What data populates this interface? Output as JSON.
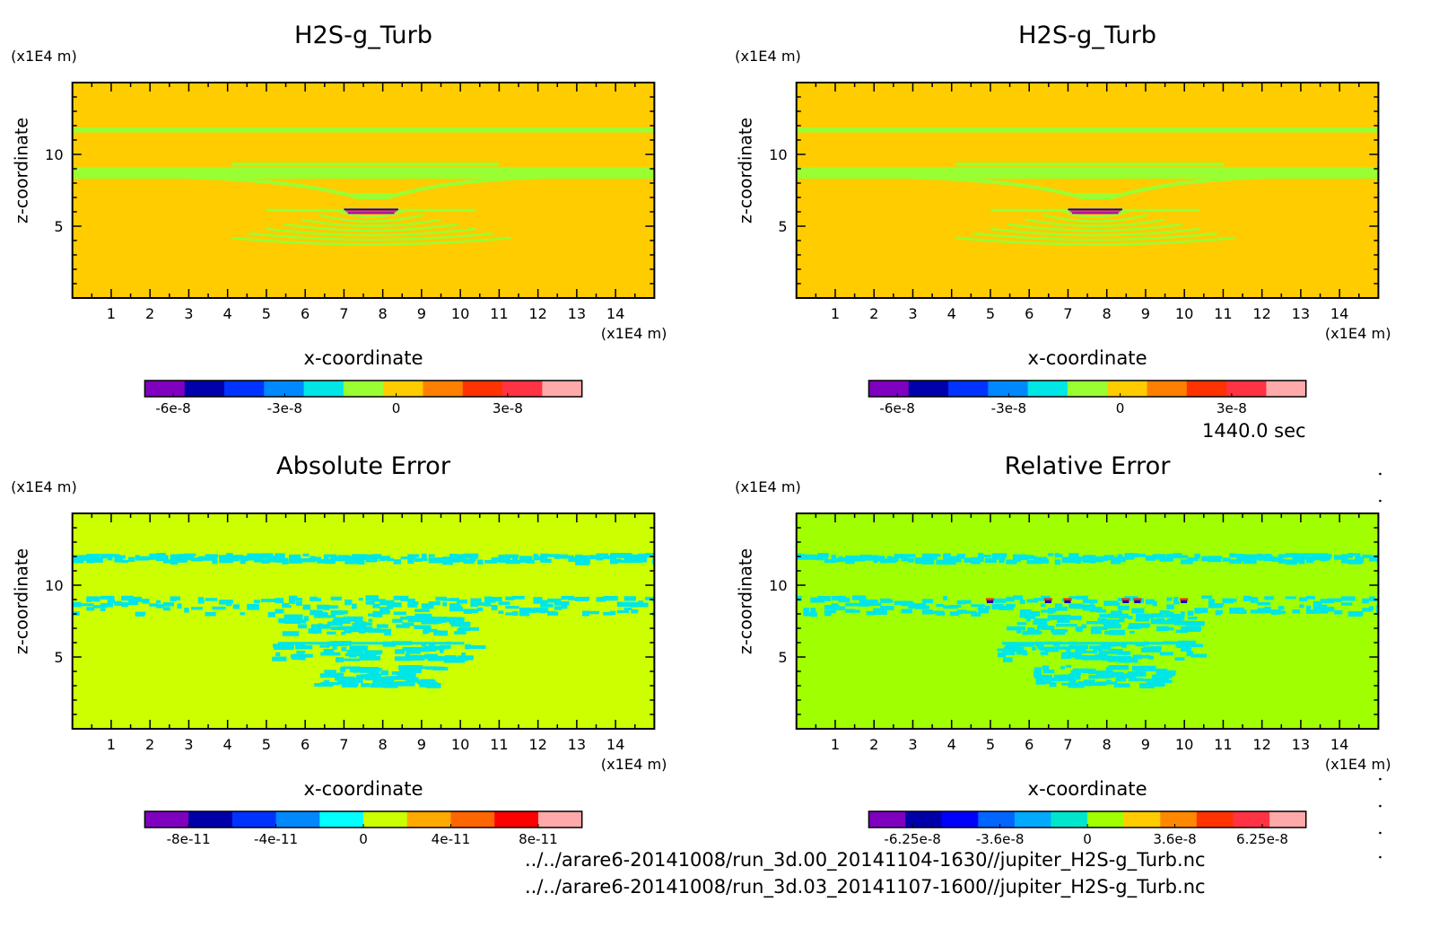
{
  "chart_data": [
    {
      "type": "heatmap",
      "title": "H2S-g_Turb",
      "xlabel": "x-coordinate",
      "ylabel": "z-coordinate",
      "x_unit": "(x1E4 m)",
      "y_unit": "(x1E4 m)",
      "x_ticks": [
        "1",
        "2",
        "3",
        "4",
        "5",
        "6",
        "7",
        "8",
        "9",
        "10",
        "11",
        "12",
        "13",
        "14"
      ],
      "y_ticks": [
        "5",
        "10"
      ],
      "xlim": [
        0,
        15
      ],
      "ylim": [
        0,
        15
      ],
      "background_color": "#ffcc00",
      "features": [
        {
          "kind": "band",
          "z": 11.7,
          "thickness": 0.35,
          "color": "#99ff33"
        },
        {
          "kind": "band",
          "z": 8.7,
          "thickness": 0.8,
          "color": "#99ff33"
        },
        {
          "kind": "thin-line",
          "z": 9.3,
          "x_from": 4.1,
          "x_to": 11.0,
          "color": "#99ff33"
        },
        {
          "kind": "wedge",
          "z": 7.0,
          "x_from": 5.0,
          "x_to": 10.5,
          "color": "#99ff33"
        },
        {
          "kind": "rings",
          "z_center": 4.0,
          "x_center": 7.7,
          "color": "#99ff33"
        },
        {
          "kind": "core",
          "z": 6.1,
          "x_center": 7.7,
          "colors": [
            "#0000cc",
            "#ff3333",
            "#9900cc"
          ]
        }
      ],
      "colorbar": {
        "colors": [
          "#7f00bf",
          "#0000aa",
          "#0033ff",
          "#0088ff",
          "#00e6e6",
          "#99ff33",
          "#ffcc00",
          "#ff8000",
          "#ff3300",
          "#ff3344",
          "#ffaaaa"
        ],
        "labels": [
          "-6e-8",
          "-3e-8",
          "0",
          "3e-8"
        ]
      }
    },
    {
      "type": "heatmap",
      "title": "H2S-g_Turb",
      "xlabel": "x-coordinate",
      "ylabel": "z-coordinate",
      "x_unit": "(x1E4 m)",
      "y_unit": "(x1E4 m)",
      "x_ticks": [
        "1",
        "2",
        "3",
        "4",
        "5",
        "6",
        "7",
        "8",
        "9",
        "10",
        "11",
        "12",
        "13",
        "14"
      ],
      "y_ticks": [
        "5",
        "10"
      ],
      "xlim": [
        0,
        15
      ],
      "ylim": [
        0,
        15
      ],
      "background_color": "#ffcc00",
      "features": [
        {
          "kind": "band",
          "z": 11.7,
          "thickness": 0.35,
          "color": "#99ff33"
        },
        {
          "kind": "band",
          "z": 8.7,
          "thickness": 0.8,
          "color": "#99ff33"
        },
        {
          "kind": "thin-line",
          "z": 9.3,
          "x_from": 4.1,
          "x_to": 11.0,
          "color": "#99ff33"
        },
        {
          "kind": "wedge",
          "z": 7.0,
          "x_from": 5.0,
          "x_to": 10.5,
          "color": "#99ff33"
        },
        {
          "kind": "rings",
          "z_center": 4.0,
          "x_center": 7.7,
          "color": "#99ff33"
        },
        {
          "kind": "core",
          "z": 6.1,
          "x_center": 7.7,
          "colors": [
            "#0000cc",
            "#ff3333",
            "#9900cc"
          ]
        }
      ],
      "colorbar": {
        "colors": [
          "#7f00bf",
          "#0000aa",
          "#0033ff",
          "#0088ff",
          "#00e6e6",
          "#99ff33",
          "#ffcc00",
          "#ff8000",
          "#ff3300",
          "#ff3344",
          "#ffaaaa"
        ],
        "labels": [
          "-6e-8",
          "-3e-8",
          "0",
          "3e-8"
        ]
      }
    },
    {
      "type": "heatmap",
      "title": "Absolute Error",
      "xlabel": "x-coordinate",
      "ylabel": "z-coordinate",
      "x_unit": "(x1E4 m)",
      "y_unit": "(x1E4 m)",
      "x_ticks": [
        "1",
        "2",
        "3",
        "4",
        "5",
        "6",
        "7",
        "8",
        "9",
        "10",
        "11",
        "12",
        "13",
        "14"
      ],
      "y_ticks": [
        "5",
        "10"
      ],
      "xlim": [
        0,
        15
      ],
      "ylim": [
        0,
        15
      ],
      "background_color": "#ccff00",
      "features": [
        {
          "kind": "noisy-band",
          "z": 12.0,
          "thickness": 0.5,
          "color": "#00e6e6"
        },
        {
          "kind": "noisy-band",
          "z": 8.7,
          "thickness": 1.2,
          "color": "#00e6e6"
        },
        {
          "kind": "noisy-blob",
          "z_center": 7.4,
          "x_center": 7.7,
          "color": "#00e6e6"
        },
        {
          "kind": "noisy-blob",
          "z_center": 5.5,
          "x_center": 7.7,
          "color": "#00e6e6"
        },
        {
          "kind": "noisy-blob",
          "z_center": 3.8,
          "x_center": 7.7,
          "color": "#00e6e6"
        }
      ],
      "colorbar": {
        "colors": [
          "#7f00bf",
          "#0000aa",
          "#0033ff",
          "#0088ff",
          "#00ffff",
          "#ccff00",
          "#ffaa00",
          "#ff6600",
          "#ff0000",
          "#ffaaaa"
        ],
        "labels": [
          "-8e-11",
          "-4e-11",
          "0",
          "4e-11",
          "8e-11"
        ]
      }
    },
    {
      "type": "heatmap",
      "title": "Relative Error",
      "xlabel": "x-coordinate",
      "ylabel": "z-coordinate",
      "x_unit": "(x1E4 m)",
      "y_unit": "(x1E4 m)",
      "x_ticks": [
        "1",
        "2",
        "3",
        "4",
        "5",
        "6",
        "7",
        "8",
        "9",
        "10",
        "11",
        "12",
        "13",
        "14"
      ],
      "y_ticks": [
        "5",
        "10"
      ],
      "xlim": [
        0,
        15
      ],
      "ylim": [
        0,
        15
      ],
      "background_color": "#a0ff00",
      "features": [
        {
          "kind": "noisy-band",
          "z": 12.0,
          "thickness": 0.5,
          "color": "#00e6e6"
        },
        {
          "kind": "noisy-band",
          "z": 8.7,
          "thickness": 1.2,
          "color": "#00e6e6"
        },
        {
          "kind": "noisy-blob",
          "z_center": 7.4,
          "x_center": 7.7,
          "color": "#00e6e6"
        },
        {
          "kind": "noisy-blob",
          "z_center": 5.5,
          "x_center": 7.7,
          "color": "#00e6e6"
        },
        {
          "kind": "noisy-blob",
          "z_center": 3.8,
          "x_center": 7.7,
          "color": "#00e6e6"
        },
        {
          "kind": "hotspots",
          "z": 9.0,
          "x_positions": [
            5.0,
            6.5,
            7.0,
            8.5,
            8.8,
            10.0
          ],
          "colors": [
            "#ff3300",
            "#0000cc"
          ]
        }
      ],
      "colorbar": {
        "colors": [
          "#7f00bf",
          "#0000aa",
          "#0000ff",
          "#0066ff",
          "#00aaff",
          "#00e6cc",
          "#a0ff00",
          "#ffcc00",
          "#ff8800",
          "#ff3300",
          "#ff3344",
          "#ffaaaa"
        ],
        "labels": [
          "-6.25e-8",
          "-3.6e-8",
          "0",
          "3.6e-8",
          "6.25e-8"
        ]
      }
    }
  ],
  "time_label": "1440.0 sec",
  "file_paths": [
    "../../arare6-20141008/run_3d.00_20141104-1630//jupiter_H2S-g_Turb.nc",
    "../../arare6-20141008/run_3d.03_20141107-1600//jupiter_H2S-g_Turb.nc"
  ]
}
